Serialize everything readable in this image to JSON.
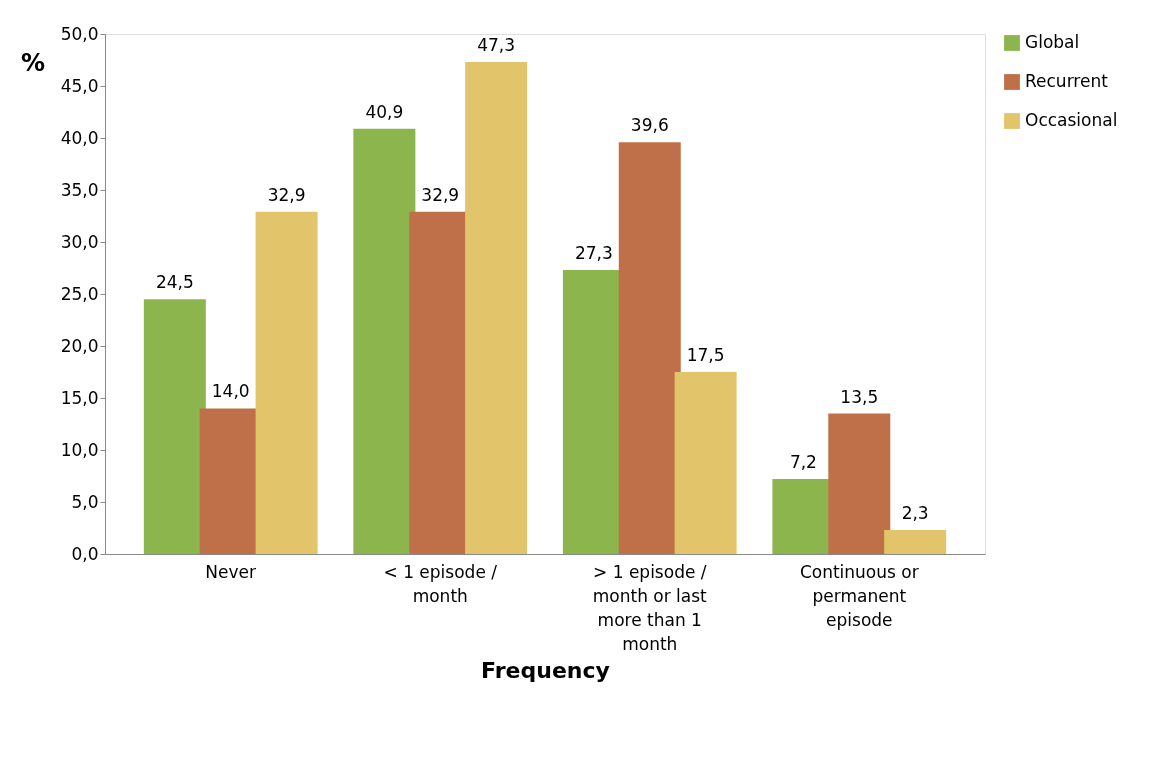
{
  "chart_data": {
    "type": "bar",
    "xlabel": "Frequency",
    "ylabel": "%",
    "categories": [
      "Never",
      "< 1 episode / month",
      "> 1 episode / month or last more than 1 month",
      "Continuous or permanent episode"
    ],
    "series": [
      {
        "name": "Global",
        "color": "#8cb54e",
        "values": [
          24.5,
          40.9,
          27.3,
          7.2
        ],
        "value_labels": [
          "24,5",
          "40,9",
          "27,3",
          "7,2"
        ]
      },
      {
        "name": "Recurrent",
        "color": "#c07048",
        "values": [
          14.0,
          32.9,
          39.6,
          13.5
        ],
        "value_labels": [
          "14,0",
          "32,9",
          "39,6",
          "13,5"
        ]
      },
      {
        "name": "Occasional",
        "color": "#e2c56a",
        "values": [
          32.9,
          47.3,
          17.5,
          2.3
        ],
        "value_labels": [
          "32,9",
          "47,3",
          "17,5",
          "2,3"
        ]
      }
    ],
    "ylim": [
      0,
      50
    ],
    "yticks": [
      {
        "value": 0,
        "label": "0,0"
      },
      {
        "value": 5,
        "label": "5,0"
      },
      {
        "value": 10,
        "label": "10,0"
      },
      {
        "value": 15,
        "label": "15,0"
      },
      {
        "value": 20,
        "label": "20,0"
      },
      {
        "value": 25,
        "label": "25,0"
      },
      {
        "value": 30,
        "label": "30,0"
      },
      {
        "value": 35,
        "label": "35,0"
      },
      {
        "value": 40,
        "label": "40,0"
      },
      {
        "value": 45,
        "label": "45,0"
      },
      {
        "value": 50,
        "label": "50,0"
      }
    ],
    "grid": false,
    "legend": "right"
  }
}
